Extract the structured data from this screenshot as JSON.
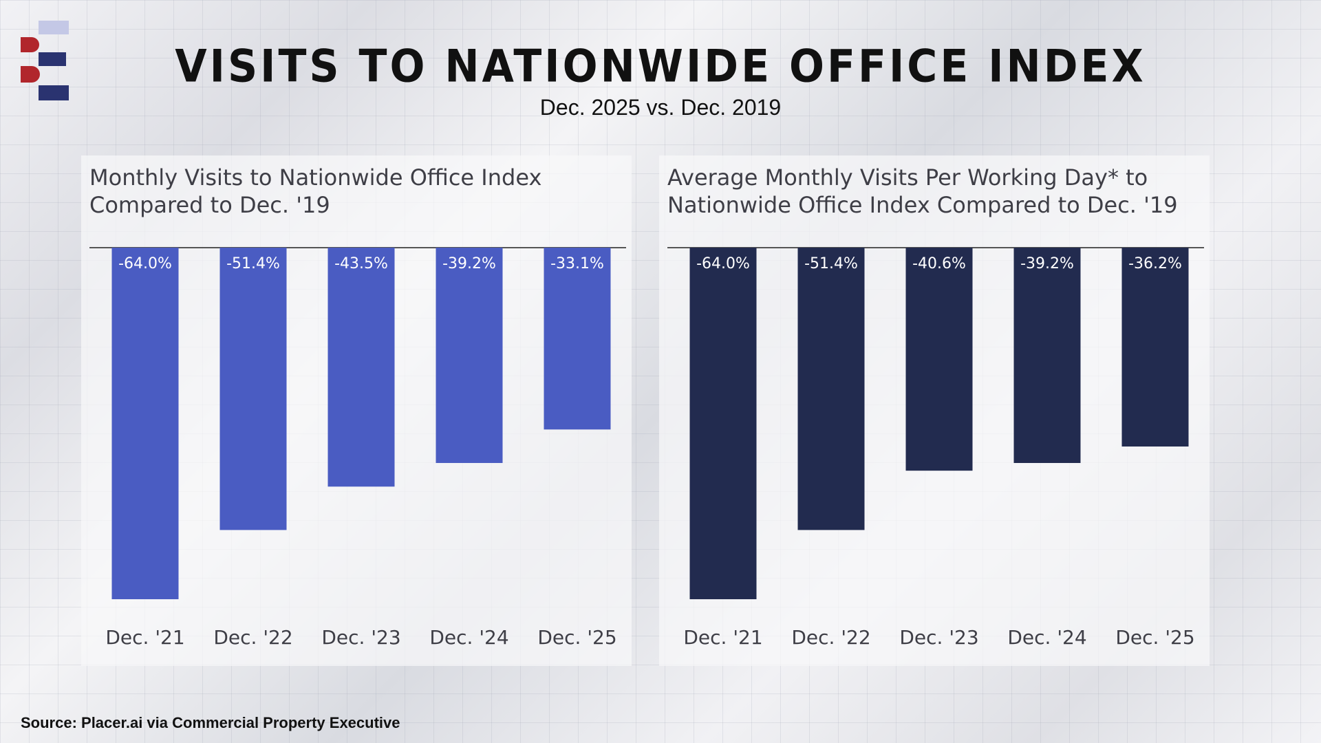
{
  "header": {
    "title": "VISITS TO NATIONWIDE OFFICE INDEX",
    "subtitle": "Dec. 2025 vs. Dec. 2019"
  },
  "footer": {
    "source": "Source: Placer.ai via Commercial Property Executive"
  },
  "brand": {
    "logo_icon": "letter-b-e-logo-icon",
    "logo_colors": [
      "#c4c8e6",
      "#b1262c",
      "#2a3370"
    ]
  },
  "chart_data": [
    {
      "type": "bar",
      "title": "Monthly Visits to Nationwide Office Index\nCompared to Dec. '19",
      "categories": [
        "Dec. '21",
        "Dec. '22",
        "Dec. '23",
        "Dec. '24",
        "Dec. '25"
      ],
      "values": [
        -64.0,
        -51.4,
        -43.5,
        -39.2,
        -33.1
      ],
      "labels": [
        "-64.0%",
        "-51.4%",
        "-43.5%",
        "-39.2%",
        "-33.1%"
      ],
      "ylim": [
        -64,
        0
      ],
      "color": "#4a5cc2",
      "xlabel": "",
      "ylabel": "",
      "grid": false,
      "legend": false
    },
    {
      "type": "bar",
      "title": "Average Monthly Visits Per Working Day* to\nNationwide Office Index Compared to Dec. '19",
      "categories": [
        "Dec. '21",
        "Dec. '22",
        "Dec. '23",
        "Dec. '24",
        "Dec. '25"
      ],
      "values": [
        -64.0,
        -51.4,
        -40.6,
        -39.2,
        -36.2
      ],
      "labels": [
        "-64.0%",
        "-51.4%",
        "-40.6%",
        "-39.2%",
        "-36.2%"
      ],
      "ylim": [
        -64,
        0
      ],
      "color": "#222b4f",
      "xlabel": "",
      "ylabel": "",
      "grid": false,
      "legend": false
    }
  ]
}
